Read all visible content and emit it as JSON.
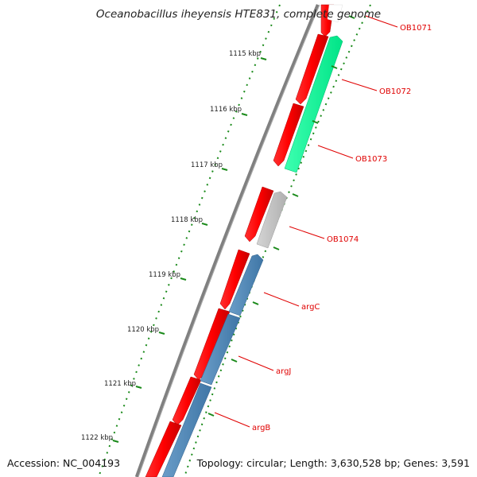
{
  "title": "Oceanobacillus iheyensis HTE831, complete genome",
  "footer": {
    "accession": "Accession: NC_004193",
    "summary": "Topology: circular; Length: 3,630,528 bp; Genes: 3,591"
  },
  "colors": {
    "backbone": "#808080",
    "cds_forward": "#ff0000",
    "cds_reverse_green": "#00ff99",
    "cds_reverse_gray": "#c0c0c0",
    "cds_reverse_blue": "#4f86b6",
    "ticks": "#1a8a1a",
    "label": "#e00000"
  },
  "kbp_ticks": [
    "1115 kbp",
    "1116 kbp",
    "1117 kbp",
    "1118 kbp",
    "1119 kbp",
    "1120 kbp",
    "1121 kbp",
    "1122 kbp"
  ],
  "gene_labels": [
    "OB1071",
    "OB1072",
    "OB1073",
    "OB1074",
    "argC",
    "argJ",
    "argB"
  ]
}
